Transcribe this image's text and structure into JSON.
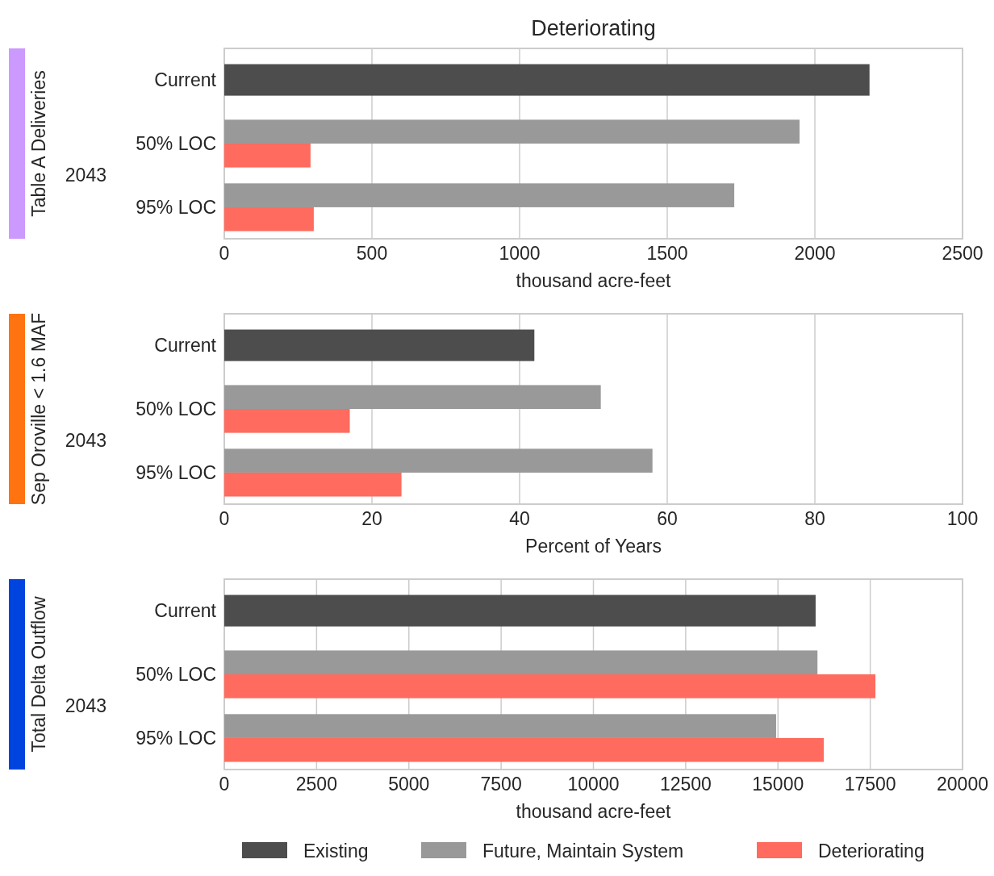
{
  "chart_data": [
    {
      "type": "bar",
      "orientation": "horizontal",
      "title": "Deteriorating",
      "ylabel": "Table A Deliveries",
      "xlabel": "thousand acre-feet",
      "categories": [
        "Current",
        "50% LOC",
        "95% LOC"
      ],
      "annotations": [
        "2043"
      ],
      "xlim": [
        0,
        2500
      ],
      "xticks": [
        0,
        500,
        1000,
        1500,
        2000,
        2500
      ],
      "grid": "x",
      "series": [
        {
          "color": "#4d4d4d",
          "values": [
            2185,
            null,
            null
          ]
        },
        {
          "color": "#999999",
          "values": [
            null,
            1948,
            1727
          ]
        },
        {
          "color": "#ff6b5e",
          "values": [
            null,
            292,
            303
          ]
        }
      ]
    },
    {
      "type": "bar",
      "orientation": "horizontal",
      "ylabel": "Sep Oroville < 1.6 MAF",
      "xlabel": "Percent of Years",
      "categories": [
        "Current",
        "50% LOC",
        "95% LOC"
      ],
      "annotations": [
        "2043"
      ],
      "xlim": [
        0,
        100
      ],
      "xticks": [
        0,
        20,
        40,
        60,
        80,
        100
      ],
      "grid": "x",
      "series": [
        {
          "color": "#4d4d4d",
          "values": [
            42,
            null,
            null
          ]
        },
        {
          "color": "#999999",
          "values": [
            null,
            51,
            58
          ]
        },
        {
          "color": "#ff6b5e",
          "values": [
            null,
            17,
            24
          ]
        }
      ]
    },
    {
      "type": "bar",
      "orientation": "horizontal",
      "ylabel": "Total Delta Outflow",
      "xlabel": "thousand acre-feet",
      "categories": [
        "Current",
        "50% LOC",
        "95% LOC"
      ],
      "annotations": [
        "2043"
      ],
      "xlim": [
        0,
        20000
      ],
      "xticks": [
        0,
        2500,
        5000,
        7500,
        10000,
        12500,
        15000,
        17500,
        20000
      ],
      "grid": "x",
      "legend": "bottom",
      "series": [
        {
          "name": "Existing",
          "color": "#4d4d4d",
          "values": [
            16020,
            null,
            null
          ]
        },
        {
          "name": "Future, Maintain System",
          "color": "#999999",
          "values": [
            null,
            16070,
            14950
          ]
        },
        {
          "name": "Deteriorating",
          "color": "#ff6b5e",
          "values": [
            null,
            17640,
            16240
          ]
        }
      ]
    }
  ]
}
